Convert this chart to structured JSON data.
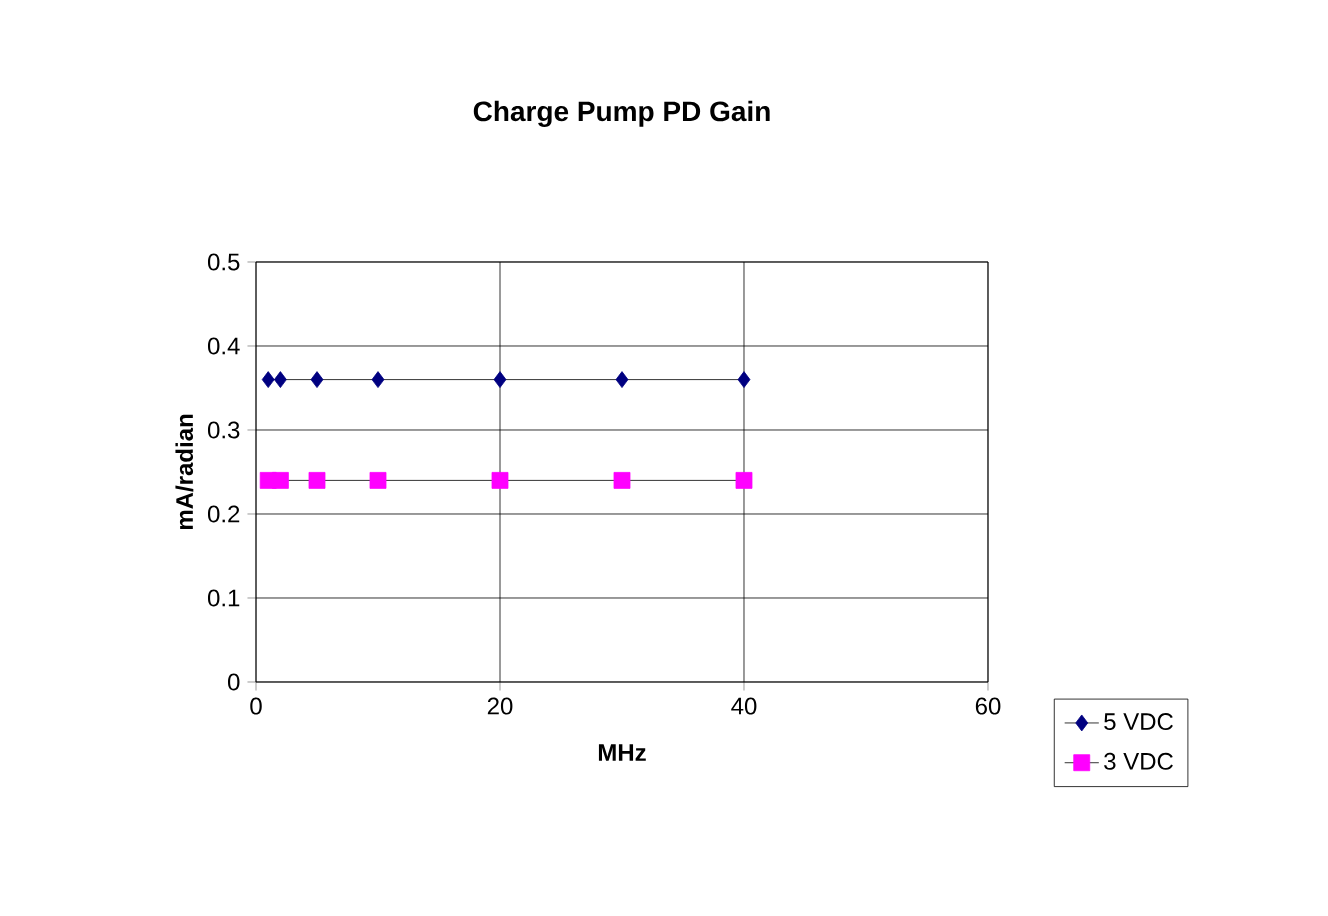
{
  "chart_data": {
    "type": "line",
    "title": "Charge Pump PD Gain",
    "xlabel": "MHz",
    "ylabel": "mA/radian",
    "x": [
      1,
      2,
      5,
      10,
      20,
      30,
      40
    ],
    "series": [
      {
        "name": "5 VDC",
        "color": "#000080",
        "marker": "diamond",
        "values": [
          0.36,
          0.36,
          0.36,
          0.36,
          0.36,
          0.36,
          0.36
        ]
      },
      {
        "name": "3 VDC",
        "color": "#ff00ff",
        "marker": "square",
        "values": [
          0.24,
          0.24,
          0.24,
          0.24,
          0.24,
          0.24,
          0.24
        ]
      }
    ],
    "xlim": [
      0,
      60
    ],
    "xticks": [
      0,
      20,
      40,
      60
    ],
    "ylim": [
      0,
      0.5
    ],
    "yticks": [
      0,
      0.1,
      0.2,
      0.3,
      0.4,
      0.5
    ],
    "grid": true,
    "legend": "right",
    "line_style": "solid"
  }
}
